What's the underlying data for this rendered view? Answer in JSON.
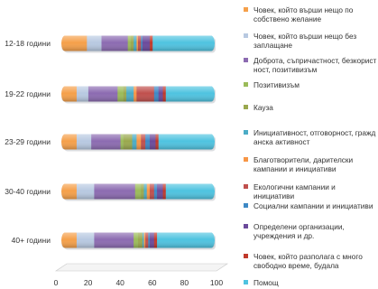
{
  "chart_data": {
    "type": "bar",
    "orientation": "horizontal",
    "stacked": true,
    "style": "3d-cylinder",
    "categories": [
      "12-18 години",
      "19-22 години",
      "23-29 години",
      "30-40 години",
      "40+  години"
    ],
    "xlim": [
      0,
      100
    ],
    "xticks": [
      "0",
      "20",
      "40",
      "60",
      "80",
      "100"
    ],
    "grid": false,
    "legend_position": "right",
    "series": [
      {
        "name": "Човек, който върши нещо по собствено желание",
        "color": "#f5a04a",
        "values": [
          15,
          8,
          8,
          8,
          8
        ]
      },
      {
        "name": "Човек, който върши нещо без заплащане",
        "color": "#b8c9e1",
        "values": [
          10,
          8,
          10,
          12,
          12
        ]
      },
      {
        "name": "Доброта, съпричастност, безкорист ност, позитивизъм",
        "color": "#8c6bb1",
        "values": [
          18,
          20,
          20,
          28,
          27
        ]
      },
      {
        "name": "Позитивизъм",
        "color": "#9bbb59",
        "values": [
          2,
          4,
          2,
          4,
          3
        ]
      },
      {
        "name": "Кауза",
        "color": "#9aa84e",
        "values": [
          2,
          2,
          6,
          2,
          3
        ]
      },
      {
        "name": "Инициативност, отговорност, гражд анска активност",
        "color": "#4bacc6",
        "values": [
          2,
          5,
          3,
          2,
          1
        ]
      },
      {
        "name": "Благотворители, дарителски кампании и инициативи",
        "color": "#f79646",
        "values": [
          1,
          2,
          3,
          2,
          1
        ]
      },
      {
        "name": "Екологични кампании и инициативи",
        "color": "#c0504d",
        "values": [
          2,
          12,
          3,
          3,
          2
        ]
      },
      {
        "name": "Социални кампании и инициативи",
        "color": "#3e89c5",
        "values": [
          1,
          3,
          3,
          2,
          1
        ]
      },
      {
        "name": "Определени организации, учреждения и др.",
        "color": "#6b4a9b",
        "values": [
          5,
          3,
          4,
          4,
          3
        ]
      },
      {
        "name": "Човек, който разполага с много свободно време, будала",
        "color": "#c0392b",
        "values": [
          2,
          2,
          2,
          2,
          2
        ]
      },
      {
        "name": "Помощ",
        "color": "#4fc3e0",
        "values": [
          40,
          31,
          36,
          31,
          37
        ]
      }
    ]
  }
}
